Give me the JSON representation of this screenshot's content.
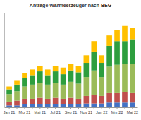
{
  "chart_data": {
    "type": "bar",
    "stacked": true,
    "title": "Anträge Wärmeerzeuger nach BEG",
    "categories": [
      "Jan 21",
      null,
      "Mrz 21",
      null,
      "Mai 21",
      null,
      "Jul 21",
      null,
      "Sep 21",
      null,
      "Nov 21",
      null,
      "Jan 22",
      null,
      "Mrz 22",
      null,
      "Mai 22"
    ],
    "series": [
      {
        "color": "#4472c4",
        "values": [
          2,
          2,
          3,
          3,
          3,
          3,
          3,
          3,
          3,
          3,
          4,
          4,
          4,
          5,
          5,
          5,
          5
        ]
      },
      {
        "color": "#c0504d",
        "values": [
          4,
          5,
          6,
          6,
          7,
          6,
          7,
          6,
          7,
          6,
          8,
          9,
          8,
          10,
          10,
          11,
          10
        ]
      },
      {
        "color": "#9bbb59",
        "values": [
          8,
          10,
          13,
          15,
          16,
          15,
          16,
          15,
          17,
          16,
          20,
          26,
          20,
          28,
          30,
          30,
          31
        ]
      },
      {
        "color": "#2e9e3e",
        "values": [
          5,
          7,
          9,
          10,
          12,
          10,
          12,
          11,
          12,
          12,
          15,
          20,
          15,
          22,
          25,
          24,
          26
        ]
      },
      {
        "color": "#ffc000",
        "values": [
          3,
          4,
          5,
          6,
          6,
          6,
          6,
          7,
          7,
          7,
          8,
          11,
          8,
          11,
          12,
          16,
          12
        ]
      }
    ],
    "ylim": [
      0,
      100
    ],
    "yticks": [],
    "tick_labels": "x",
    "grid": false
  }
}
